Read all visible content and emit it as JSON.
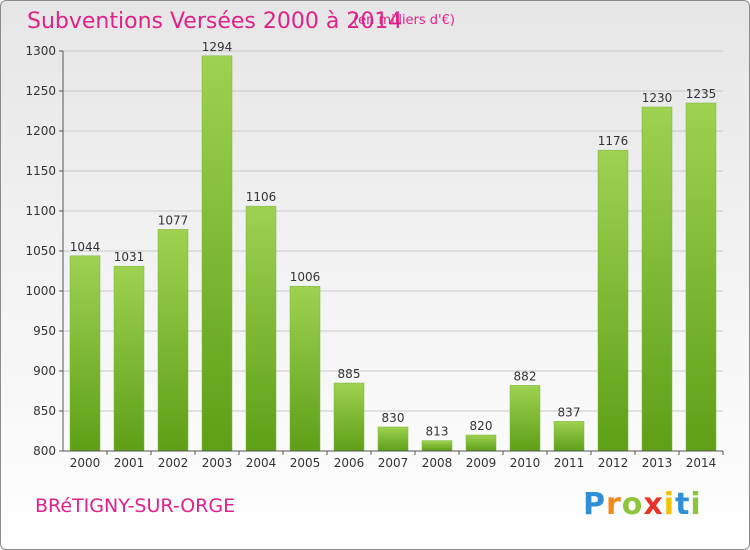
{
  "header": {
    "title": "Subventions Versées 2000 à 2014",
    "subtitle": "(en milliers d'€)"
  },
  "footer": {
    "location": "BRéTIGNY-SUR-ORGE",
    "logo": {
      "letters": [
        "P",
        "r",
        "o",
        "x",
        "i",
        "t",
        "i"
      ],
      "colors": [
        "#2e8fd6",
        "#f08a1c",
        "#8cc43c",
        "#e8332a",
        "#f2c200",
        "#2e8fd6",
        "#8cc43c"
      ]
    }
  },
  "colors": {
    "accent": "#e0218a",
    "bar_top": "#9ed251",
    "bar_bottom": "#5e9f16"
  },
  "chart_data": {
    "type": "bar",
    "title": "Subventions Versées 2000 à 2014",
    "subtitle": "(en milliers d'€)",
    "categories": [
      "2000",
      "2001",
      "2002",
      "2003",
      "2004",
      "2005",
      "2006",
      "2007",
      "2008",
      "2009",
      "2010",
      "2011",
      "2012",
      "2013",
      "2014"
    ],
    "values": [
      1044,
      1031,
      1077,
      1294,
      1106,
      1006,
      885,
      830,
      813,
      820,
      882,
      837,
      1176,
      1230,
      1235
    ],
    "ylim": [
      800,
      1300
    ],
    "yticks": [
      800,
      850,
      900,
      950,
      1000,
      1050,
      1100,
      1150,
      1200,
      1250,
      1300
    ],
    "grid": true,
    "data_labels": true
  }
}
